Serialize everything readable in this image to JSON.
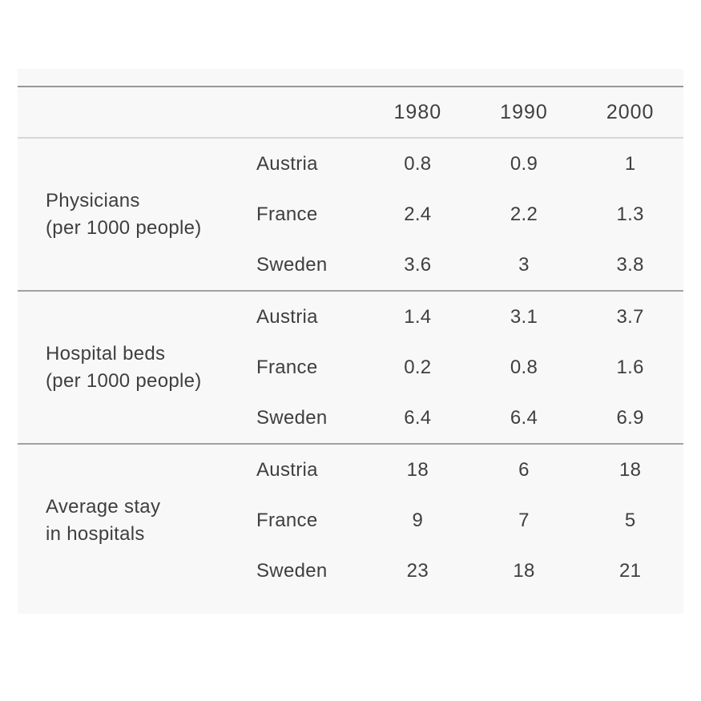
{
  "chart_data": {
    "type": "table",
    "columns": [
      "1980",
      "1990",
      "2000"
    ],
    "sections": [
      {
        "label": "Physicians (per 1000 people)",
        "label_lines": [
          "Physicians",
          "(per 1000 people)"
        ],
        "rows": [
          {
            "country": "Austria",
            "values": [
              "0.8",
              "0.9",
              "1"
            ]
          },
          {
            "country": "France",
            "values": [
              "2.4",
              "2.2",
              "1.3"
            ]
          },
          {
            "country": "Sweden",
            "values": [
              "3.6",
              "3",
              "3.8"
            ]
          }
        ]
      },
      {
        "label": "Hospital beds (per 1000 people)",
        "label_lines": [
          "Hospital beds",
          "(per 1000 people)"
        ],
        "rows": [
          {
            "country": "Austria",
            "values": [
              "1.4",
              "3.1",
              "3.7"
            ]
          },
          {
            "country": "France",
            "values": [
              "0.2",
              "0.8",
              "1.6"
            ]
          },
          {
            "country": "Sweden",
            "values": [
              "6.4",
              "6.4",
              "6.9"
            ]
          }
        ]
      },
      {
        "label": "Average stay in hospitals",
        "label_lines": [
          "Average stay",
          "in hospitals"
        ],
        "rows": [
          {
            "country": "Austria",
            "values": [
              "18",
              "6",
              "18"
            ]
          },
          {
            "country": "France",
            "values": [
              "9",
              "7",
              "5"
            ]
          },
          {
            "country": "Sweden",
            "values": [
              "23",
              "18",
              "21"
            ]
          }
        ]
      }
    ]
  },
  "colors": {
    "page_background": "#ffffff",
    "table_background": "#f8f8f8",
    "text": "#3f3f3f",
    "border_top": "#979797",
    "border_section": "#a2a2a2",
    "border_header": "#d7d7d7"
  }
}
